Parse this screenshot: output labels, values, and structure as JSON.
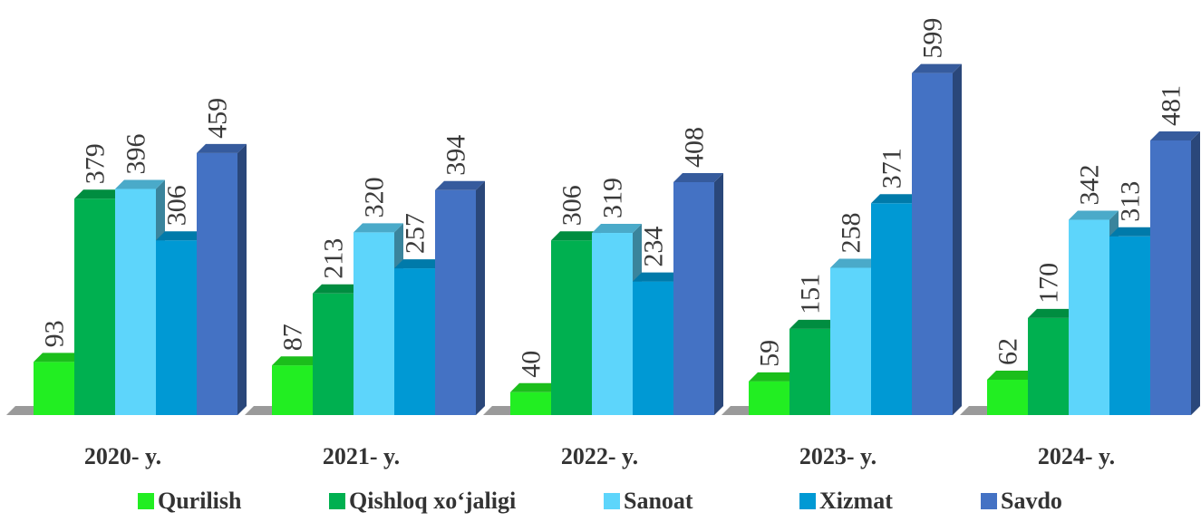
{
  "chart_data": {
    "type": "bar",
    "categories": [
      "2020- y.",
      "2021- y.",
      "2022- y.",
      "2023- y.",
      "2024- y."
    ],
    "series": [
      {
        "name": "Qurilish",
        "values": [
          93,
          87,
          40,
          59,
          62
        ],
        "color": "#22ee22"
      },
      {
        "name": "Qishloq xo‘jaligi",
        "values": [
          379,
          213,
          306,
          151,
          170
        ],
        "color": "#00b050"
      },
      {
        "name": "Sanoat",
        "values": [
          396,
          320,
          319,
          258,
          342
        ],
        "color": "#5dd5fb"
      },
      {
        "name": "Xizmat",
        "values": [
          306,
          257,
          234,
          371,
          313
        ],
        "color": "#0099d4"
      },
      {
        "name": "Savdo",
        "values": [
          459,
          394,
          408,
          599,
          481
        ],
        "color": "#4472c4"
      }
    ],
    "title": "",
    "xlabel": "",
    "ylabel": "",
    "ylim": [
      0,
      620
    ],
    "grid": false,
    "legend_position": "bottom",
    "style": "3d-column"
  }
}
